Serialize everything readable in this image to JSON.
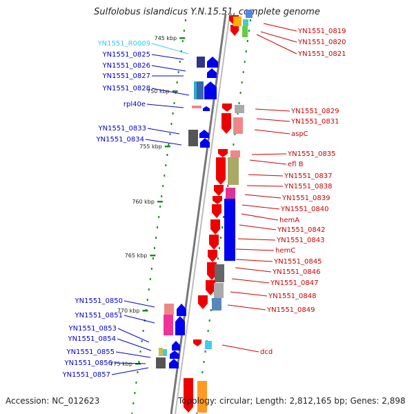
{
  "title": "Sulfolobus islandicus Y.N.15.51, complete genome",
  "footer": {
    "accession": "Accession: NC_012623",
    "topology": "Topology: circular; Length: 2,812,165 bp; Genes: 2,898"
  },
  "colors": {
    "forward_primary": "#0000ee",
    "reverse_primary": "#ee0000",
    "label_left": "#0000cc",
    "label_right": "#cc0000",
    "label_rna": "#33ccee",
    "tick": "#1a8a1a",
    "backbone": "#888888"
  },
  "ticks": [
    "745 kbp",
    "750 kbp",
    "755 kbp",
    "760 kbp",
    "765 kbp",
    "770 kbp",
    "775 kbp"
  ],
  "left_labels": [
    {
      "text": "YN1551_R0009",
      "kind": "rna"
    },
    {
      "text": "YN1551_0825"
    },
    {
      "text": "YN1551_0826"
    },
    {
      "text": "YN1551_0827"
    },
    {
      "text": "YN1551_0828"
    },
    {
      "text": "rpl40e"
    },
    {
      "text": "YN1551_0833"
    },
    {
      "text": "YN1551_0834"
    },
    {
      "text": "YN1551_0850"
    },
    {
      "text": "YN1551_0851"
    },
    {
      "text": "YN1551_0853"
    },
    {
      "text": "YN1551_0854"
    },
    {
      "text": "YN1551_0855"
    },
    {
      "text": "YN1551_0856"
    },
    {
      "text": "YN1551_0857"
    }
  ],
  "right_labels": [
    {
      "text": "YN1551_0819"
    },
    {
      "text": "YN1551_0820"
    },
    {
      "text": "YN1551_0821"
    },
    {
      "text": "YN1551_0829"
    },
    {
      "text": "YN1551_0831"
    },
    {
      "text": "aspC"
    },
    {
      "text": "YN1551_0835"
    },
    {
      "text": "efl B"
    },
    {
      "text": "YN1551_0837"
    },
    {
      "text": "YN1551_0838"
    },
    {
      "text": "YN1551_0839"
    },
    {
      "text": "YN1551_0840"
    },
    {
      "text": "hemA"
    },
    {
      "text": "YN1551_0842"
    },
    {
      "text": "YN1551_0843"
    },
    {
      "text": "hemC"
    },
    {
      "text": "YN1551_0845"
    },
    {
      "text": "YN1551_0846"
    },
    {
      "text": "YN1551_0847"
    },
    {
      "text": "YN1551_0848"
    },
    {
      "text": "YN1551_0849"
    },
    {
      "text": "dcd"
    }
  ]
}
